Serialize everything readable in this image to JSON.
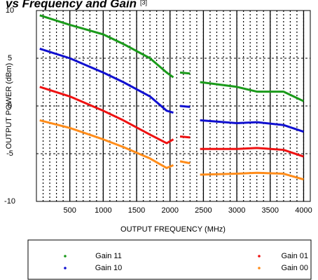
{
  "chart_data": {
    "type": "line",
    "title": "vs Frequency and Gain",
    "title_note": "[3]",
    "x_label": "OUTPUT FREQUENCY (MHz)",
    "y_label": "OUTPUT POWER (dBm)",
    "x": [
      50,
      500,
      1000,
      1300,
      1700,
      1950,
      2050,
      2100,
      2150,
      2300,
      2380,
      2450,
      3000,
      3300,
      3700,
      4000
    ],
    "series": [
      {
        "name": "Gain 11",
        "color": "#1a9a1a",
        "values": [
          9.5,
          8.5,
          7.5,
          6.5,
          5,
          3.5,
          3,
          null,
          3.5,
          3.4,
          null,
          2.5,
          2,
          1.5,
          1.5,
          0.5
        ]
      },
      {
        "name": "Gain 10",
        "color": "#1010d0",
        "values": [
          6,
          5,
          3.5,
          2.5,
          1,
          -0.5,
          -0.7,
          null,
          0,
          -0.1,
          null,
          -1.5,
          -1.8,
          -1.7,
          -2,
          -2.7
        ]
      },
      {
        "name": "Gain 01",
        "color": "#ee1111",
        "values": [
          2,
          1,
          -0.5,
          -1.5,
          -3,
          -3.9,
          -3.5,
          null,
          -3.2,
          -3.3,
          null,
          -4.5,
          -4.5,
          -4.4,
          -4.6,
          -5.3
        ]
      },
      {
        "name": "Gain 00",
        "color": "#ff8c1a",
        "values": [
          -1.5,
          -2.3,
          -3.5,
          -4.3,
          -5.5,
          -6.5,
          -6.2,
          null,
          -5.8,
          -6,
          null,
          -7.2,
          -7.1,
          -7,
          -7.1,
          -7.7
        ]
      }
    ],
    "xlim": [
      0,
      4100
    ],
    "ylim": [
      -10,
      10
    ],
    "xticks": [
      500,
      1000,
      1500,
      2000,
      2500,
      3000,
      3500,
      4000
    ],
    "yticks": [
      -10,
      -5,
      0,
      5,
      10
    ],
    "grid": true
  }
}
